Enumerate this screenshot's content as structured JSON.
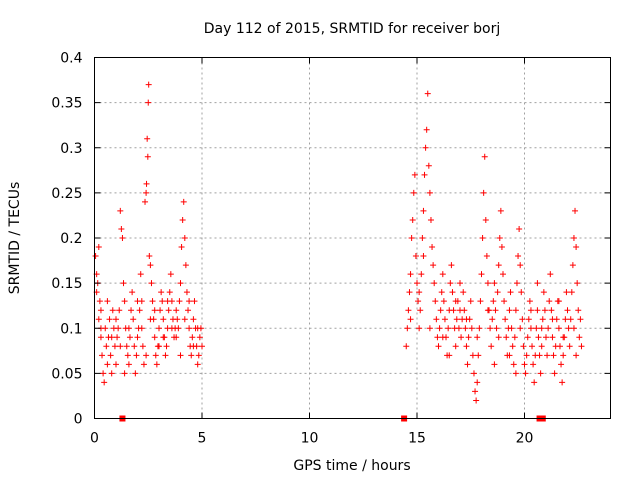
{
  "chart_data": {
    "type": "scatter",
    "title": "Day 112 of 2015, SRMTID for receiver borj",
    "xlabel": "GPS time / hours",
    "ylabel": "SRMTID / TECUs",
    "xlim": [
      0,
      24
    ],
    "ylim": [
      0,
      0.4
    ],
    "xticks": [
      0,
      5,
      10,
      15,
      20
    ],
    "xtick_labels": [
      "0",
      "5",
      "10",
      "15",
      "20"
    ],
    "yticks": [
      0,
      0.05,
      0.1,
      0.15,
      0.2,
      0.25,
      0.3,
      0.35,
      0.4
    ],
    "ytick_labels": [
      "0",
      "0.05",
      "0.1",
      "0.15",
      "0.2",
      "0.25",
      "0.3",
      "0.35",
      "0.4"
    ],
    "grid": true,
    "marker": "plus",
    "color": "#ff0000",
    "gap_markers_x": [
      1.3,
      14.4,
      20.7,
      20.85
    ],
    "series": [
      {
        "points": [
          [
            0.05,
            0.18
          ],
          [
            0.1,
            0.16
          ],
          [
            0.15,
            0.15
          ],
          [
            0.2,
            0.19
          ],
          [
            0.25,
            0.13
          ],
          [
            0.3,
            0.12
          ],
          [
            0.1,
            0.14
          ],
          [
            0.2,
            0.11
          ],
          [
            0.3,
            0.09
          ],
          [
            0.35,
            0.07
          ],
          [
            0.4,
            0.05
          ],
          [
            0.45,
            0.04
          ],
          [
            0.5,
            0.1
          ],
          [
            0.55,
            0.08
          ],
          [
            0.6,
            0.06
          ],
          [
            0.65,
            0.09
          ],
          [
            0.7,
            0.11
          ],
          [
            0.75,
            0.07
          ],
          [
            0.8,
            0.05
          ],
          [
            0.85,
            0.12
          ],
          [
            0.9,
            0.1
          ],
          [
            0.95,
            0.08
          ],
          [
            1.0,
            0.06
          ],
          [
            1.05,
            0.09
          ],
          [
            1.1,
            0.1
          ],
          [
            1.15,
            0.12
          ],
          [
            1.2,
            0.23
          ],
          [
            1.25,
            0.21
          ],
          [
            1.3,
            0.2
          ],
          [
            1.35,
            0.15
          ],
          [
            1.4,
            0.13
          ],
          [
            1.45,
            0.1
          ],
          [
            1.5,
            0.08
          ],
          [
            1.55,
            0.07
          ],
          [
            1.6,
            0.06
          ],
          [
            1.65,
            0.09
          ],
          [
            1.7,
            0.12
          ],
          [
            1.75,
            0.14
          ],
          [
            1.8,
            0.11
          ],
          [
            1.85,
            0.08
          ],
          [
            1.9,
            0.05
          ],
          [
            1.95,
            0.07
          ],
          [
            2.0,
            0.09
          ],
          [
            2.05,
            0.1
          ],
          [
            2.1,
            0.12
          ],
          [
            2.15,
            0.16
          ],
          [
            2.2,
            0.13
          ],
          [
            2.25,
            0.08
          ],
          [
            2.3,
            0.06
          ],
          [
            2.35,
            0.24
          ],
          [
            2.4,
            0.25
          ],
          [
            2.42,
            0.26
          ],
          [
            2.45,
            0.31
          ],
          [
            2.48,
            0.29
          ],
          [
            2.5,
            0.35
          ],
          [
            2.52,
            0.37
          ],
          [
            2.55,
            0.18
          ],
          [
            2.6,
            0.17
          ],
          [
            2.65,
            0.15
          ],
          [
            2.7,
            0.13
          ],
          [
            2.75,
            0.11
          ],
          [
            2.8,
            0.09
          ],
          [
            2.85,
            0.07
          ],
          [
            2.9,
            0.06
          ],
          [
            2.95,
            0.08
          ],
          [
            3.0,
            0.1
          ],
          [
            3.05,
            0.12
          ],
          [
            3.1,
            0.14
          ],
          [
            3.15,
            0.13
          ],
          [
            3.2,
            0.11
          ],
          [
            3.25,
            0.09
          ],
          [
            3.3,
            0.07
          ],
          [
            3.35,
            0.08
          ],
          [
            3.4,
            0.1
          ],
          [
            3.45,
            0.12
          ],
          [
            3.5,
            0.14
          ],
          [
            3.55,
            0.16
          ],
          [
            3.6,
            0.13
          ],
          [
            3.65,
            0.11
          ],
          [
            3.7,
            0.09
          ],
          [
            3.75,
            0.1
          ],
          [
            3.8,
            0.12
          ],
          [
            3.85,
            0.11
          ],
          [
            3.9,
            0.1
          ],
          [
            3.95,
            0.13
          ],
          [
            4.0,
            0.15
          ],
          [
            4.05,
            0.19
          ],
          [
            4.1,
            0.22
          ],
          [
            4.15,
            0.24
          ],
          [
            4.2,
            0.2
          ],
          [
            4.25,
            0.17
          ],
          [
            4.3,
            0.14
          ],
          [
            4.35,
            0.12
          ],
          [
            4.4,
            0.1
          ],
          [
            4.45,
            0.08
          ],
          [
            4.5,
            0.07
          ],
          [
            4.55,
            0.09
          ],
          [
            4.6,
            0.11
          ],
          [
            4.65,
            0.13
          ],
          [
            4.7,
            0.1
          ],
          [
            4.75,
            0.08
          ],
          [
            4.8,
            0.06
          ],
          [
            4.85,
            0.07
          ],
          [
            4.9,
            0.09
          ],
          [
            4.95,
            0.1
          ],
          [
            5.0,
            0.08
          ],
          [
            0.6,
            0.13
          ],
          [
            1.0,
            0.11
          ],
          [
            1.6,
            0.1
          ],
          [
            2.0,
            0.13
          ],
          [
            2.6,
            0.11
          ],
          [
            3.0,
            0.08
          ],
          [
            3.4,
            0.13
          ],
          [
            3.8,
            0.09
          ],
          [
            4.2,
            0.11
          ],
          [
            4.6,
            0.08
          ],
          [
            0.8,
            0.09
          ],
          [
            1.4,
            0.05
          ],
          [
            2.2,
            0.1
          ],
          [
            2.8,
            0.12
          ],
          [
            3.6,
            0.1
          ],
          [
            4.4,
            0.13
          ],
          [
            4.8,
            0.1
          ],
          [
            0.3,
            0.1
          ],
          [
            1.2,
            0.08
          ],
          [
            2.4,
            0.07
          ],
          [
            3.2,
            0.09
          ],
          [
            4.0,
            0.07
          ],
          [
            14.5,
            0.08
          ],
          [
            14.55,
            0.1
          ],
          [
            14.6,
            0.12
          ],
          [
            14.65,
            0.14
          ],
          [
            14.7,
            0.16
          ],
          [
            14.75,
            0.2
          ],
          [
            14.8,
            0.22
          ],
          [
            14.85,
            0.25
          ],
          [
            14.9,
            0.27
          ],
          [
            14.95,
            0.18
          ],
          [
            15.0,
            0.15
          ],
          [
            15.05,
            0.13
          ],
          [
            15.1,
            0.1
          ],
          [
            15.15,
            0.12
          ],
          [
            15.2,
            0.16
          ],
          [
            15.25,
            0.2
          ],
          [
            15.3,
            0.23
          ],
          [
            15.35,
            0.27
          ],
          [
            15.4,
            0.3
          ],
          [
            15.45,
            0.32
          ],
          [
            15.5,
            0.36
          ],
          [
            15.55,
            0.28
          ],
          [
            15.6,
            0.25
          ],
          [
            15.65,
            0.22
          ],
          [
            15.7,
            0.19
          ],
          [
            15.75,
            0.17
          ],
          [
            15.8,
            0.15
          ],
          [
            15.85,
            0.13
          ],
          [
            15.9,
            0.11
          ],
          [
            15.95,
            0.09
          ],
          [
            16.0,
            0.08
          ],
          [
            16.05,
            0.1
          ],
          [
            16.1,
            0.12
          ],
          [
            16.15,
            0.14
          ],
          [
            16.2,
            0.16
          ],
          [
            16.25,
            0.13
          ],
          [
            16.3,
            0.11
          ],
          [
            16.35,
            0.09
          ],
          [
            16.4,
            0.07
          ],
          [
            16.45,
            0.1
          ],
          [
            16.5,
            0.12
          ],
          [
            16.55,
            0.15
          ],
          [
            16.6,
            0.17
          ],
          [
            16.65,
            0.14
          ],
          [
            16.7,
            0.12
          ],
          [
            16.75,
            0.1
          ],
          [
            16.8,
            0.08
          ],
          [
            16.85,
            0.11
          ],
          [
            16.9,
            0.13
          ],
          [
            16.95,
            0.1
          ],
          [
            17.0,
            0.12
          ],
          [
            17.05,
            0.09
          ],
          [
            17.1,
            0.11
          ],
          [
            17.15,
            0.14
          ],
          [
            17.2,
            0.12
          ],
          [
            17.25,
            0.1
          ],
          [
            17.3,
            0.08
          ],
          [
            17.35,
            0.06
          ],
          [
            17.4,
            0.09
          ],
          [
            17.45,
            0.11
          ],
          [
            17.5,
            0.13
          ],
          [
            17.55,
            0.1
          ],
          [
            17.6,
            0.07
          ],
          [
            17.65,
            0.05
          ],
          [
            17.7,
            0.03
          ],
          [
            17.75,
            0.02
          ],
          [
            17.8,
            0.04
          ],
          [
            17.85,
            0.07
          ],
          [
            17.9,
            0.1
          ],
          [
            17.95,
            0.13
          ],
          [
            18.0,
            0.16
          ],
          [
            18.05,
            0.2
          ],
          [
            18.1,
            0.25
          ],
          [
            18.15,
            0.29
          ],
          [
            18.2,
            0.22
          ],
          [
            18.25,
            0.18
          ],
          [
            18.3,
            0.15
          ],
          [
            18.35,
            0.12
          ],
          [
            18.4,
            0.1
          ],
          [
            18.45,
            0.08
          ],
          [
            18.5,
            0.11
          ],
          [
            18.55,
            0.13
          ],
          [
            18.6,
            0.15
          ],
          [
            18.65,
            0.12
          ],
          [
            18.7,
            0.1
          ],
          [
            18.75,
            0.14
          ],
          [
            18.8,
            0.17
          ],
          [
            18.85,
            0.2
          ],
          [
            18.9,
            0.23
          ],
          [
            18.95,
            0.19
          ],
          [
            19.0,
            0.16
          ],
          [
            19.05,
            0.13
          ],
          [
            19.1,
            0.11
          ],
          [
            19.15,
            0.09
          ],
          [
            19.2,
            0.07
          ],
          [
            19.25,
            0.1
          ],
          [
            19.3,
            0.12
          ],
          [
            19.35,
            0.14
          ],
          [
            19.4,
            0.1
          ],
          [
            19.45,
            0.08
          ],
          [
            19.5,
            0.06
          ],
          [
            19.55,
            0.09
          ],
          [
            19.6,
            0.12
          ],
          [
            19.65,
            0.15
          ],
          [
            19.7,
            0.18
          ],
          [
            19.75,
            0.21
          ],
          [
            19.8,
            0.17
          ],
          [
            19.85,
            0.14
          ],
          [
            19.9,
            0.11
          ],
          [
            19.95,
            0.08
          ],
          [
            20.0,
            0.06
          ],
          [
            20.05,
            0.05
          ],
          [
            20.1,
            0.07
          ],
          [
            20.15,
            0.09
          ],
          [
            20.2,
            0.11
          ],
          [
            20.25,
            0.13
          ],
          [
            20.3,
            0.1
          ],
          [
            20.35,
            0.08
          ],
          [
            20.4,
            0.06
          ],
          [
            20.45,
            0.04
          ],
          [
            20.5,
            0.07
          ],
          [
            20.55,
            0.1
          ],
          [
            20.6,
            0.12
          ],
          [
            20.65,
            0.09
          ],
          [
            20.7,
            0.07
          ],
          [
            20.75,
            0.05
          ],
          [
            20.8,
            0.08
          ],
          [
            20.85,
            0.11
          ],
          [
            20.9,
            0.14
          ],
          [
            20.95,
            0.12
          ],
          [
            21.0,
            0.09
          ],
          [
            21.05,
            0.07
          ],
          [
            21.1,
            0.1
          ],
          [
            21.15,
            0.13
          ],
          [
            21.2,
            0.16
          ],
          [
            21.25,
            0.12
          ],
          [
            21.3,
            0.09
          ],
          [
            21.35,
            0.07
          ],
          [
            21.4,
            0.05
          ],
          [
            21.45,
            0.08
          ],
          [
            21.5,
            0.11
          ],
          [
            21.55,
            0.13
          ],
          [
            21.6,
            0.1
          ],
          [
            21.65,
            0.08
          ],
          [
            21.7,
            0.06
          ],
          [
            21.75,
            0.04
          ],
          [
            21.8,
            0.07
          ],
          [
            21.85,
            0.09
          ],
          [
            21.9,
            0.11
          ],
          [
            21.95,
            0.14
          ],
          [
            22.0,
            0.12
          ],
          [
            22.05,
            0.1
          ],
          [
            22.1,
            0.08
          ],
          [
            22.15,
            0.11
          ],
          [
            22.2,
            0.14
          ],
          [
            22.25,
            0.17
          ],
          [
            22.3,
            0.2
          ],
          [
            22.35,
            0.23
          ],
          [
            22.4,
            0.19
          ],
          [
            22.45,
            0.15
          ],
          [
            22.5,
            0.12
          ],
          [
            22.55,
            0.09
          ],
          [
            22.6,
            0.11
          ],
          [
            22.65,
            0.08
          ],
          [
            14.7,
            0.11
          ],
          [
            15.1,
            0.14
          ],
          [
            15.6,
            0.1
          ],
          [
            16.2,
            0.09
          ],
          [
            16.8,
            0.13
          ],
          [
            17.3,
            0.11
          ],
          [
            17.8,
            0.09
          ],
          [
            18.3,
            0.12
          ],
          [
            18.8,
            0.09
          ],
          [
            19.3,
            0.07
          ],
          [
            19.8,
            0.1
          ],
          [
            20.3,
            0.12
          ],
          [
            20.8,
            0.1
          ],
          [
            21.3,
            0.11
          ],
          [
            21.8,
            0.09
          ],
          [
            22.3,
            0.1
          ],
          [
            15.3,
            0.18
          ],
          [
            16.5,
            0.07
          ],
          [
            17.0,
            0.15
          ],
          [
            18.6,
            0.06
          ],
          [
            19.6,
            0.05
          ],
          [
            20.6,
            0.15
          ],
          [
            21.6,
            0.13
          ],
          [
            22.4,
            0.07
          ]
        ]
      }
    ]
  }
}
